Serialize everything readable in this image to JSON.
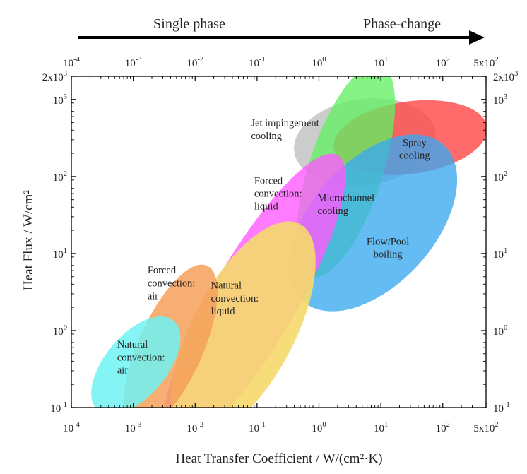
{
  "chart_data": {
    "type": "bubble-region",
    "xlabel": "Heat Transfer Coefficient / W/(cm²·K)",
    "ylabel": "Heat Flux / W/cm²",
    "xscale": "log",
    "yscale": "log",
    "xlim": [
      0.0001,
      500
    ],
    "ylim": [
      0.1,
      2000
    ],
    "x_ticks": [
      {
        "value": 0.0001,
        "base": "10",
        "exp": "-4",
        "mult": ""
      },
      {
        "value": 0.001,
        "base": "10",
        "exp": "-3",
        "mult": ""
      },
      {
        "value": 0.01,
        "base": "10",
        "exp": "-2",
        "mult": ""
      },
      {
        "value": 0.1,
        "base": "10",
        "exp": "-1",
        "mult": ""
      },
      {
        "value": 1,
        "base": "10",
        "exp": "0",
        "mult": ""
      },
      {
        "value": 10,
        "base": "10",
        "exp": "1",
        "mult": ""
      },
      {
        "value": 100,
        "base": "10",
        "exp": "2",
        "mult": ""
      },
      {
        "value": 500,
        "base": "10",
        "exp": "2",
        "mult": "5x"
      }
    ],
    "y_ticks": [
      {
        "value": 0.1,
        "base": "10",
        "exp": "-1",
        "mult": ""
      },
      {
        "value": 1,
        "base": "10",
        "exp": "0",
        "mult": ""
      },
      {
        "value": 10,
        "base": "10",
        "exp": "1",
        "mult": ""
      },
      {
        "value": 100,
        "base": "10",
        "exp": "2",
        "mult": ""
      },
      {
        "value": 1000,
        "base": "10",
        "exp": "3",
        "mult": ""
      },
      {
        "value": 2000,
        "base": "10",
        "exp": "3",
        "mult": "2x"
      }
    ],
    "arrow": {
      "left_label": "Single phase",
      "right_label": "Phase-change"
    },
    "regions": [
      {
        "name": "Jet impingement cooling",
        "label_lines": [
          "Jet impingement",
          "cooling"
        ],
        "color": "#c3c3c3",
        "opacity": 0.85,
        "center": [
          5.5,
          280
        ],
        "rx_decades": 1.15,
        "ry_decades": 0.56,
        "angle_deg": 8,
        "label_pos": [
          0.08,
          450
        ],
        "label_anchor": "start"
      },
      {
        "name": "Spray cooling",
        "label_lines": [
          "Spray",
          "cooling"
        ],
        "color": "#ff4a4a",
        "opacity": 0.82,
        "center": [
          30,
          320
        ],
        "rx_decades": 1.25,
        "ry_decades": 0.47,
        "angle_deg": 8,
        "label_pos": [
          35,
          250
        ],
        "label_anchor": "middle"
      },
      {
        "name": "Microchannel cooling",
        "label_lines": [
          "Microchannel",
          "cooling"
        ],
        "color": "#63f063",
        "opacity": 0.78,
        "center": [
          2.7,
          120
        ],
        "rx_decades": 0.6,
        "ry_decades": 1.45,
        "angle_deg": -18,
        "label_pos": [
          0.95,
          48
        ],
        "label_anchor": "start"
      },
      {
        "name": "Flow/Pool boiling",
        "label_lines": [
          "Flow/Pool",
          "boiling"
        ],
        "color": "#3aa9f0",
        "opacity": 0.78,
        "center": [
          7.5,
          25
        ],
        "rx_decades": 1.7,
        "ry_decades": 0.8,
        "angle_deg": 48,
        "label_pos": [
          13,
          13
        ],
        "label_anchor": "middle"
      },
      {
        "name": "Forced convection: liquid",
        "label_lines": [
          "Forced",
          "convection:",
          "liquid"
        ],
        "color": "#ff5aff",
        "opacity": 0.8,
        "center": [
          0.09,
          2.5
        ],
        "rx_decades": 2.7,
        "ry_decades": 0.55,
        "angle_deg": 60,
        "label_pos": [
          0.09,
          80
        ],
        "label_anchor": "start"
      },
      {
        "name": "Natural convection: liquid",
        "label_lines": [
          "Natural",
          "convection:",
          "liquid"
        ],
        "color": "#f5d96b",
        "opacity": 0.9,
        "center": [
          0.06,
          1.0
        ],
        "rx_decades": 1.95,
        "ry_decades": 0.66,
        "angle_deg": 62,
        "label_pos": [
          0.018,
          3.5
        ],
        "label_anchor": "start"
      },
      {
        "name": "Forced convection: air",
        "label_lines": [
          "Forced",
          "convection:",
          "air"
        ],
        "color": "#f5a05a",
        "opacity": 0.85,
        "center": [
          0.004,
          0.6
        ],
        "rx_decades": 1.45,
        "ry_decades": 0.42,
        "angle_deg": 66,
        "label_pos": [
          0.0017,
          5.5
        ],
        "label_anchor": "start"
      },
      {
        "name": "Natural convection: air",
        "label_lines": [
          "Natural",
          "convection:",
          "air"
        ],
        "color": "#6ff2f2",
        "opacity": 0.85,
        "center": [
          0.0011,
          0.35
        ],
        "rx_decades": 0.95,
        "ry_decades": 0.4,
        "angle_deg": 50,
        "label_pos": [
          0.00055,
          0.6
        ],
        "label_anchor": "start"
      }
    ]
  }
}
